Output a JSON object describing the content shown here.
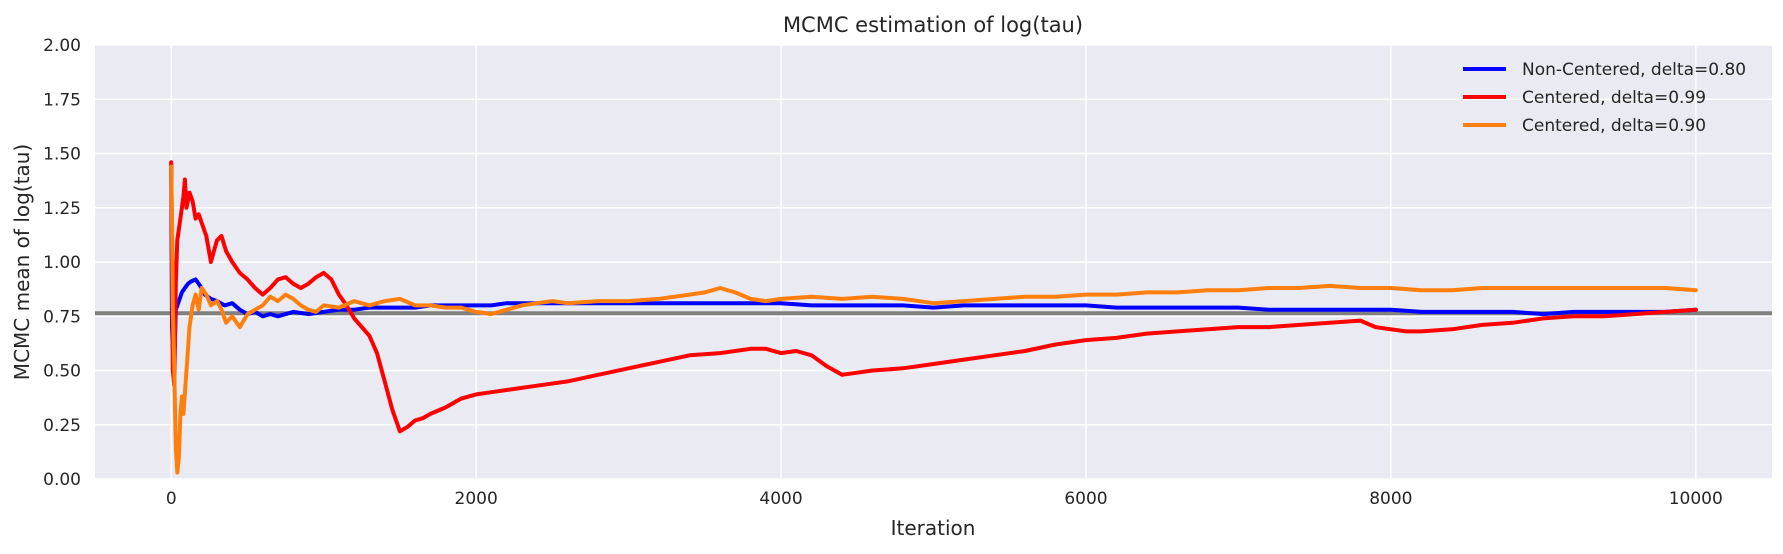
{
  "chart_data": {
    "type": "line",
    "title": "MCMC estimation of log(tau)",
    "xlabel": "Iteration",
    "ylabel": "MCMC mean of log(tau)",
    "xlim": [
      -500,
      10500
    ],
    "ylim": [
      0.0,
      2.0
    ],
    "x_ticks": [
      0,
      2000,
      4000,
      6000,
      8000,
      10000
    ],
    "x_tick_labels": [
      "0",
      "2000",
      "4000",
      "6000",
      "8000",
      "10000"
    ],
    "y_ticks": [
      0.0,
      0.25,
      0.5,
      0.75,
      1.0,
      1.25,
      1.5,
      1.75,
      2.0
    ],
    "y_tick_labels": [
      "0.00",
      "0.25",
      "0.50",
      "0.75",
      "1.00",
      "1.25",
      "1.50",
      "1.75",
      "2.00"
    ],
    "grid": true,
    "background": "#eaeaf2",
    "legend_position": "top-right",
    "reference_line": {
      "y": 0.764,
      "color": "#808080"
    },
    "series": [
      {
        "name": "Non-Centered, delta=0.80",
        "color": "#0000ff",
        "points": [
          [
            0,
            1.45
          ],
          [
            5,
            0.7
          ],
          [
            10,
            0.6
          ],
          [
            20,
            0.55
          ],
          [
            30,
            0.78
          ],
          [
            50,
            0.82
          ],
          [
            70,
            0.86
          ],
          [
            90,
            0.88
          ],
          [
            110,
            0.9
          ],
          [
            130,
            0.91
          ],
          [
            160,
            0.92
          ],
          [
            190,
            0.89
          ],
          [
            220,
            0.85
          ],
          [
            260,
            0.83
          ],
          [
            300,
            0.82
          ],
          [
            350,
            0.8
          ],
          [
            400,
            0.81
          ],
          [
            450,
            0.78
          ],
          [
            500,
            0.76
          ],
          [
            550,
            0.77
          ],
          [
            600,
            0.75
          ],
          [
            650,
            0.76
          ],
          [
            700,
            0.75
          ],
          [
            800,
            0.77
          ],
          [
            900,
            0.76
          ],
          [
            1000,
            0.77
          ],
          [
            1100,
            0.78
          ],
          [
            1200,
            0.78
          ],
          [
            1300,
            0.79
          ],
          [
            1400,
            0.79
          ],
          [
            1500,
            0.79
          ],
          [
            1600,
            0.79
          ],
          [
            1700,
            0.8
          ],
          [
            1800,
            0.8
          ],
          [
            1900,
            0.8
          ],
          [
            2000,
            0.8
          ],
          [
            2100,
            0.8
          ],
          [
            2200,
            0.81
          ],
          [
            2400,
            0.81
          ],
          [
            2600,
            0.81
          ],
          [
            2800,
            0.81
          ],
          [
            3000,
            0.81
          ],
          [
            3200,
            0.81
          ],
          [
            3400,
            0.81
          ],
          [
            3600,
            0.81
          ],
          [
            3800,
            0.81
          ],
          [
            4000,
            0.81
          ],
          [
            4200,
            0.8
          ],
          [
            4400,
            0.8
          ],
          [
            4600,
            0.8
          ],
          [
            4800,
            0.8
          ],
          [
            5000,
            0.79
          ],
          [
            5200,
            0.8
          ],
          [
            5400,
            0.8
          ],
          [
            5600,
            0.8
          ],
          [
            5800,
            0.8
          ],
          [
            6000,
            0.8
          ],
          [
            6200,
            0.79
          ],
          [
            6400,
            0.79
          ],
          [
            6600,
            0.79
          ],
          [
            6800,
            0.79
          ],
          [
            7000,
            0.79
          ],
          [
            7200,
            0.78
          ],
          [
            7400,
            0.78
          ],
          [
            7600,
            0.78
          ],
          [
            7800,
            0.78
          ],
          [
            8000,
            0.78
          ],
          [
            8200,
            0.77
          ],
          [
            8400,
            0.77
          ],
          [
            8600,
            0.77
          ],
          [
            8800,
            0.77
          ],
          [
            9000,
            0.76
          ],
          [
            9200,
            0.77
          ],
          [
            9400,
            0.77
          ],
          [
            9600,
            0.77
          ],
          [
            9800,
            0.77
          ],
          [
            10000,
            0.78
          ]
        ]
      },
      {
        "name": "Centered, delta=0.99",
        "color": "#ff0000",
        "points": [
          [
            0,
            1.46
          ],
          [
            5,
            1.1
          ],
          [
            10,
            0.5
          ],
          [
            20,
            0.43
          ],
          [
            30,
            0.9
          ],
          [
            40,
            1.1
          ],
          [
            60,
            1.2
          ],
          [
            80,
            1.3
          ],
          [
            90,
            1.38
          ],
          [
            100,
            1.25
          ],
          [
            120,
            1.32
          ],
          [
            140,
            1.28
          ],
          [
            160,
            1.2
          ],
          [
            180,
            1.22
          ],
          [
            200,
            1.18
          ],
          [
            230,
            1.12
          ],
          [
            260,
            1.0
          ],
          [
            280,
            1.05
          ],
          [
            300,
            1.1
          ],
          [
            330,
            1.12
          ],
          [
            360,
            1.05
          ],
          [
            400,
            1.0
          ],
          [
            450,
            0.95
          ],
          [
            500,
            0.92
          ],
          [
            550,
            0.88
          ],
          [
            600,
            0.85
          ],
          [
            650,
            0.88
          ],
          [
            700,
            0.92
          ],
          [
            750,
            0.93
          ],
          [
            800,
            0.9
          ],
          [
            850,
            0.88
          ],
          [
            900,
            0.9
          ],
          [
            950,
            0.93
          ],
          [
            1000,
            0.95
          ],
          [
            1050,
            0.92
          ],
          [
            1100,
            0.85
          ],
          [
            1150,
            0.8
          ],
          [
            1200,
            0.74
          ],
          [
            1250,
            0.7
          ],
          [
            1300,
            0.66
          ],
          [
            1350,
            0.58
          ],
          [
            1400,
            0.45
          ],
          [
            1450,
            0.32
          ],
          [
            1500,
            0.22
          ],
          [
            1550,
            0.24
          ],
          [
            1600,
            0.27
          ],
          [
            1650,
            0.28
          ],
          [
            1700,
            0.3
          ],
          [
            1800,
            0.33
          ],
          [
            1900,
            0.37
          ],
          [
            2000,
            0.39
          ],
          [
            2100,
            0.4
          ],
          [
            2200,
            0.41
          ],
          [
            2400,
            0.43
          ],
          [
            2600,
            0.45
          ],
          [
            2800,
            0.48
          ],
          [
            3000,
            0.51
          ],
          [
            3200,
            0.54
          ],
          [
            3400,
            0.57
          ],
          [
            3600,
            0.58
          ],
          [
            3800,
            0.6
          ],
          [
            3900,
            0.6
          ],
          [
            4000,
            0.58
          ],
          [
            4100,
            0.59
          ],
          [
            4200,
            0.57
          ],
          [
            4300,
            0.52
          ],
          [
            4400,
            0.48
          ],
          [
            4600,
            0.5
          ],
          [
            4800,
            0.51
          ],
          [
            5000,
            0.53
          ],
          [
            5200,
            0.55
          ],
          [
            5400,
            0.57
          ],
          [
            5600,
            0.59
          ],
          [
            5800,
            0.62
          ],
          [
            6000,
            0.64
          ],
          [
            6200,
            0.65
          ],
          [
            6400,
            0.67
          ],
          [
            6600,
            0.68
          ],
          [
            6800,
            0.69
          ],
          [
            7000,
            0.7
          ],
          [
            7200,
            0.7
          ],
          [
            7400,
            0.71
          ],
          [
            7600,
            0.72
          ],
          [
            7800,
            0.73
          ],
          [
            7900,
            0.7
          ],
          [
            8000,
            0.69
          ],
          [
            8100,
            0.68
          ],
          [
            8200,
            0.68
          ],
          [
            8400,
            0.69
          ],
          [
            8600,
            0.71
          ],
          [
            8800,
            0.72
          ],
          [
            9000,
            0.74
          ],
          [
            9200,
            0.75
          ],
          [
            9400,
            0.75
          ],
          [
            9600,
            0.76
          ],
          [
            9800,
            0.77
          ],
          [
            10000,
            0.78
          ]
        ]
      },
      {
        "name": "Centered, delta=0.90",
        "color": "#ff7f0e",
        "points": [
          [
            0,
            1.44
          ],
          [
            5,
            1.2
          ],
          [
            10,
            0.8
          ],
          [
            20,
            0.5
          ],
          [
            30,
            0.15
          ],
          [
            40,
            0.03
          ],
          [
            50,
            0.1
          ],
          [
            60,
            0.3
          ],
          [
            70,
            0.38
          ],
          [
            80,
            0.3
          ],
          [
            100,
            0.5
          ],
          [
            120,
            0.7
          ],
          [
            140,
            0.8
          ],
          [
            160,
            0.85
          ],
          [
            180,
            0.78
          ],
          [
            200,
            0.88
          ],
          [
            230,
            0.85
          ],
          [
            260,
            0.8
          ],
          [
            300,
            0.82
          ],
          [
            330,
            0.78
          ],
          [
            360,
            0.72
          ],
          [
            400,
            0.75
          ],
          [
            450,
            0.7
          ],
          [
            500,
            0.76
          ],
          [
            550,
            0.78
          ],
          [
            600,
            0.8
          ],
          [
            650,
            0.84
          ],
          [
            700,
            0.82
          ],
          [
            750,
            0.85
          ],
          [
            800,
            0.83
          ],
          [
            850,
            0.8
          ],
          [
            900,
            0.78
          ],
          [
            950,
            0.77
          ],
          [
            1000,
            0.8
          ],
          [
            1100,
            0.79
          ],
          [
            1200,
            0.82
          ],
          [
            1300,
            0.8
          ],
          [
            1400,
            0.82
          ],
          [
            1500,
            0.83
          ],
          [
            1600,
            0.8
          ],
          [
            1700,
            0.8
          ],
          [
            1800,
            0.79
          ],
          [
            1900,
            0.79
          ],
          [
            2000,
            0.77
          ],
          [
            2100,
            0.76
          ],
          [
            2200,
            0.78
          ],
          [
            2300,
            0.8
          ],
          [
            2400,
            0.81
          ],
          [
            2500,
            0.82
          ],
          [
            2600,
            0.81
          ],
          [
            2800,
            0.82
          ],
          [
            3000,
            0.82
          ],
          [
            3200,
            0.83
          ],
          [
            3400,
            0.85
          ],
          [
            3500,
            0.86
          ],
          [
            3600,
            0.88
          ],
          [
            3700,
            0.86
          ],
          [
            3800,
            0.83
          ],
          [
            3900,
            0.82
          ],
          [
            4000,
            0.83
          ],
          [
            4200,
            0.84
          ],
          [
            4400,
            0.83
          ],
          [
            4600,
            0.84
          ],
          [
            4800,
            0.83
          ],
          [
            5000,
            0.81
          ],
          [
            5200,
            0.82
          ],
          [
            5400,
            0.83
          ],
          [
            5600,
            0.84
          ],
          [
            5800,
            0.84
          ],
          [
            6000,
            0.85
          ],
          [
            6200,
            0.85
          ],
          [
            6400,
            0.86
          ],
          [
            6600,
            0.86
          ],
          [
            6800,
            0.87
          ],
          [
            7000,
            0.87
          ],
          [
            7200,
            0.88
          ],
          [
            7400,
            0.88
          ],
          [
            7600,
            0.89
          ],
          [
            7800,
            0.88
          ],
          [
            8000,
            0.88
          ],
          [
            8200,
            0.87
          ],
          [
            8400,
            0.87
          ],
          [
            8600,
            0.88
          ],
          [
            8800,
            0.88
          ],
          [
            9000,
            0.88
          ],
          [
            9200,
            0.88
          ],
          [
            9400,
            0.88
          ],
          [
            9600,
            0.88
          ],
          [
            9800,
            0.88
          ],
          [
            10000,
            0.87
          ]
        ]
      }
    ]
  }
}
